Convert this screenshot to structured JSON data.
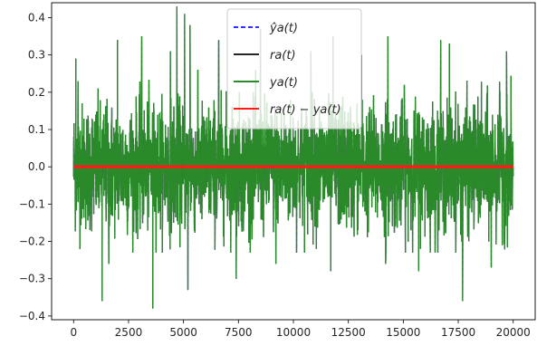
{
  "chart_data": {
    "type": "line",
    "title": "",
    "xlabel": "",
    "ylabel": "",
    "xlim": [
      -1000,
      21000
    ],
    "ylim": [
      -0.41,
      0.44
    ],
    "x_ticks": [
      0,
      2500,
      5000,
      7500,
      10000,
      12500,
      15000,
      17500,
      20000
    ],
    "x_tick_labels": [
      "0",
      "2500",
      "5000",
      "7500",
      "10000",
      "12500",
      "15000",
      "17500",
      "20000"
    ],
    "y_ticks": [
      -0.4,
      -0.3,
      -0.2,
      -0.1,
      0.0,
      0.1,
      0.2,
      0.3,
      0.4
    ],
    "y_tick_labels": [
      "−0.4",
      "−0.3",
      "−0.2",
      "−0.1",
      "0.0",
      "0.1",
      "0.2",
      "0.3",
      "0.4"
    ],
    "grid": false,
    "legend_position": "top-center",
    "x_range": [
      0,
      20000
    ],
    "noise_envelope": {
      "typical_amplitude": 0.2,
      "max": 0.43,
      "min": -0.38
    },
    "spikes": [
      {
        "x": 100,
        "y": 0.29
      },
      {
        "x": 200,
        "y": 0.23
      },
      {
        "x": 2000,
        "y": 0.34
      },
      {
        "x": 3100,
        "y": 0.35
      },
      {
        "x": 4400,
        "y": 0.31
      },
      {
        "x": 4700,
        "y": 0.43
      },
      {
        "x": 5050,
        "y": 0.41
      },
      {
        "x": 5300,
        "y": 0.38
      },
      {
        "x": 6600,
        "y": 0.34
      },
      {
        "x": 8500,
        "y": 0.37
      },
      {
        "x": 10800,
        "y": 0.31
      },
      {
        "x": 11800,
        "y": 0.35
      },
      {
        "x": 13100,
        "y": 0.3
      },
      {
        "x": 14300,
        "y": 0.35
      },
      {
        "x": 16700,
        "y": 0.34
      },
      {
        "x": 17100,
        "y": 0.33
      },
      {
        "x": 19700,
        "y": 0.31
      },
      {
        "x": 1300,
        "y": -0.36
      },
      {
        "x": 1600,
        "y": -0.26
      },
      {
        "x": 3600,
        "y": -0.38
      },
      {
        "x": 5200,
        "y": -0.33
      },
      {
        "x": 7400,
        "y": -0.3
      },
      {
        "x": 9200,
        "y": -0.26
      },
      {
        "x": 11700,
        "y": -0.28
      },
      {
        "x": 14200,
        "y": -0.26
      },
      {
        "x": 15700,
        "y": -0.28
      },
      {
        "x": 17700,
        "y": -0.36
      },
      {
        "x": 19000,
        "y": -0.27
      }
    ],
    "series": [
      {
        "name": "ŷa(t)",
        "color": "#3333ff",
        "style": "dashed",
        "approx_value": "same as ya(t)"
      },
      {
        "name": "ra(t)",
        "color": "#262626",
        "style": "solid",
        "approx_value": "same as ya(t)"
      },
      {
        "name": "ya(t)",
        "color": "#2a8a2a",
        "style": "solid",
        "approx_value": "noise"
      },
      {
        "name": "ra(t) − ya(t)",
        "color": "#ff1a1a",
        "style": "solid",
        "constant": 0.0
      }
    ]
  }
}
